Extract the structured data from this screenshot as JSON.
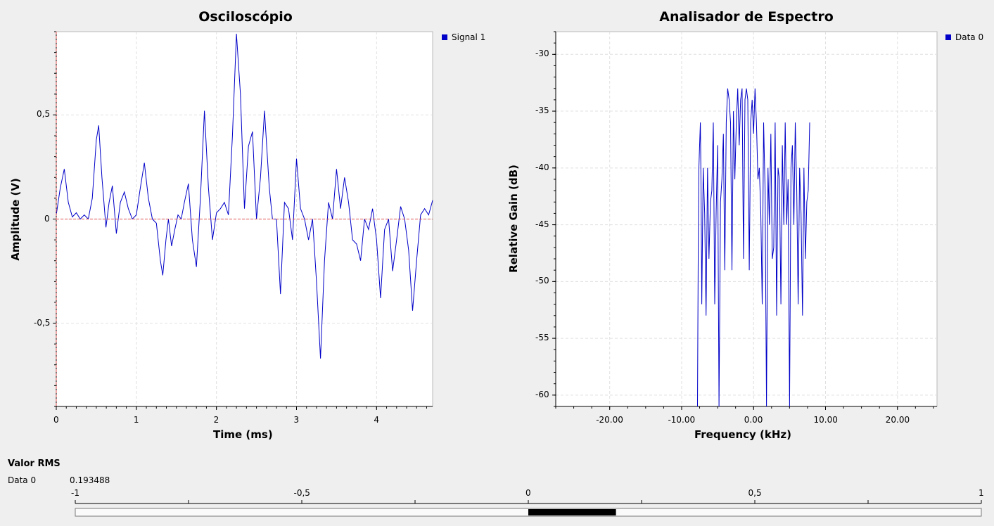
{
  "oscilloscope": {
    "title": "Osciloscópio",
    "xlabel": "Time (ms)",
    "ylabel": "Amplitude (V)",
    "legend": "Signal 1",
    "color": "#0000c8",
    "marker_color": "#e05050"
  },
  "spectrum": {
    "title": "Analisador de Espectro",
    "xlabel": "Frequency (kHz)",
    "ylabel": "Relative Gain (dB)",
    "legend": "Data 0",
    "color": "#0000c8"
  },
  "rms": {
    "title": "Valor RMS",
    "label": "Data 0",
    "value": "0.193488",
    "bar_value": 0.193488,
    "scale_ticks": [
      "-1",
      "-0,5",
      "0",
      "0,5",
      "1"
    ]
  },
  "chart_data": [
    {
      "type": "line",
      "title": "Osciloscópio",
      "xlabel": "Time (ms)",
      "ylabel": "Amplitude (V)",
      "xlim": [
        0,
        4.7
      ],
      "ylim": [
        -0.9,
        0.9
      ],
      "x_ticks": [
        0,
        1,
        2,
        3,
        4
      ],
      "x_tick_labels": [
        "0",
        "1",
        "2",
        "3",
        "4"
      ],
      "y_ticks": [
        -0.5,
        0,
        0.5
      ],
      "y_tick_labels": [
        "-0,5",
        "0",
        "0,5"
      ],
      "grid": true,
      "legend": "top-right",
      "series": [
        {
          "name": "Signal 1",
          "x": [
            0,
            0.05,
            0.1,
            0.15,
            0.2,
            0.25,
            0.3,
            0.35,
            0.4,
            0.45,
            0.5,
            0.53,
            0.57,
            0.62,
            0.66,
            0.7,
            0.75,
            0.8,
            0.85,
            0.9,
            0.95,
            1.0,
            1.05,
            1.1,
            1.15,
            1.2,
            1.25,
            1.3,
            1.33,
            1.37,
            1.4,
            1.44,
            1.48,
            1.52,
            1.56,
            1.6,
            1.65,
            1.7,
            1.75,
            1.8,
            1.85,
            1.9,
            1.95,
            2.0,
            2.05,
            2.1,
            2.15,
            2.2,
            2.25,
            2.3,
            2.35,
            2.4,
            2.45,
            2.5,
            2.55,
            2.6,
            2.66,
            2.7,
            2.75,
            2.8,
            2.85,
            2.9,
            2.95,
            3.0,
            3.05,
            3.1,
            3.15,
            3.2,
            3.25,
            3.3,
            3.35,
            3.4,
            3.45,
            3.5,
            3.55,
            3.6,
            3.65,
            3.7,
            3.75,
            3.8,
            3.85,
            3.9,
            3.95,
            4.0,
            4.05,
            4.1,
            4.15,
            4.2,
            4.25,
            4.3,
            4.35,
            4.4,
            4.45,
            4.5,
            4.55,
            4.6,
            4.65,
            4.7
          ],
          "values": [
            0.02,
            0.15,
            0.24,
            0.08,
            0.01,
            0.03,
            0.0,
            0.02,
            0.0,
            0.1,
            0.38,
            0.45,
            0.2,
            -0.04,
            0.08,
            0.16,
            -0.07,
            0.08,
            0.13,
            0.05,
            0.0,
            0.02,
            0.15,
            0.27,
            0.1,
            0.0,
            -0.02,
            -0.2,
            -0.27,
            -0.1,
            0.0,
            -0.13,
            -0.05,
            0.02,
            0.0,
            0.08,
            0.17,
            -0.1,
            -0.23,
            0.1,
            0.52,
            0.15,
            -0.1,
            0.03,
            0.05,
            0.08,
            0.02,
            0.4,
            0.89,
            0.6,
            0.05,
            0.35,
            0.42,
            0.0,
            0.2,
            0.52,
            0.15,
            0.0,
            0.0,
            -0.36,
            0.08,
            0.05,
            -0.1,
            0.29,
            0.05,
            0.0,
            -0.1,
            0.0,
            -0.3,
            -0.67,
            -0.2,
            0.08,
            0.0,
            0.24,
            0.05,
            0.2,
            0.08,
            -0.1,
            -0.12,
            -0.2,
            0.0,
            -0.05,
            0.05,
            -0.1,
            -0.38,
            -0.05,
            0.0,
            -0.25,
            -0.1,
            0.06,
            0.0,
            -0.15,
            -0.44,
            -0.2,
            0.02,
            0.05,
            0.02,
            0.09
          ]
        }
      ]
    },
    {
      "type": "line",
      "title": "Analisador de Espectro",
      "xlabel": "Frequency (kHz)",
      "ylabel": "Relative Gain (dB)",
      "xlim": [
        -27.5,
        25.5
      ],
      "ylim": [
        -61,
        -28
      ],
      "x_ticks": [
        -20,
        -10,
        0,
        10,
        20
      ],
      "x_tick_labels": [
        "-20.00",
        "-10.00",
        "0.00",
        "10.00",
        "20.00"
      ],
      "y_ticks": [
        -60,
        -55,
        -50,
        -45,
        -40,
        -35,
        -30
      ],
      "y_tick_labels": [
        "-60",
        "-55",
        "-50",
        "-45",
        "-40",
        "-35",
        "-30"
      ],
      "grid": true,
      "legend": "top-right",
      "series": [
        {
          "name": "Data 0",
          "x": [
            -7.8,
            -7.7,
            -7.6,
            -7.5,
            -7.4,
            -7.3,
            -7.2,
            -7.0,
            -6.8,
            -6.6,
            -6.4,
            -6.2,
            -6.0,
            -5.8,
            -5.6,
            -5.4,
            -5.2,
            -5.0,
            -4.8,
            -4.6,
            -4.4,
            -4.2,
            -4.0,
            -3.8,
            -3.6,
            -3.4,
            -3.2,
            -3.0,
            -2.8,
            -2.6,
            -2.4,
            -2.2,
            -2.0,
            -1.8,
            -1.6,
            -1.4,
            -1.2,
            -1.0,
            -0.8,
            -0.6,
            -0.4,
            -0.2,
            0.0,
            0.2,
            0.4,
            0.6,
            0.8,
            1.0,
            1.2,
            1.4,
            1.6,
            1.8,
            2.0,
            2.2,
            2.4,
            2.6,
            2.8,
            3.0,
            3.2,
            3.4,
            3.6,
            3.8,
            4.0,
            4.2,
            4.4,
            4.6,
            4.8,
            5.0,
            5.2,
            5.4,
            5.6,
            5.8,
            6.0,
            6.2,
            6.4,
            6.6,
            6.8,
            7.0,
            7.2,
            7.4,
            7.6,
            7.8
          ],
          "values": [
            -61,
            -48,
            -40,
            -38,
            -36,
            -42,
            -52,
            -40,
            -44,
            -53,
            -40,
            -48,
            -43,
            -42,
            -36,
            -52,
            -44,
            -38,
            -61,
            -43,
            -41,
            -37,
            -49,
            -36,
            -33,
            -34,
            -36,
            -49,
            -35,
            -41,
            -36,
            -33,
            -38,
            -34,
            -33,
            -48,
            -34,
            -33,
            -34,
            -49,
            -36,
            -34,
            -37,
            -33,
            -36,
            -41,
            -40,
            -44,
            -52,
            -36,
            -42,
            -61,
            -40,
            -45,
            -37,
            -48,
            -47,
            -36,
            -53,
            -40,
            -41,
            -52,
            -38,
            -45,
            -36,
            -45,
            -41,
            -61,
            -40,
            -38,
            -45,
            -36,
            -42,
            -52,
            -40,
            -44,
            -53,
            -40,
            -48,
            -43,
            -42,
            -36
          ]
        }
      ]
    }
  ]
}
